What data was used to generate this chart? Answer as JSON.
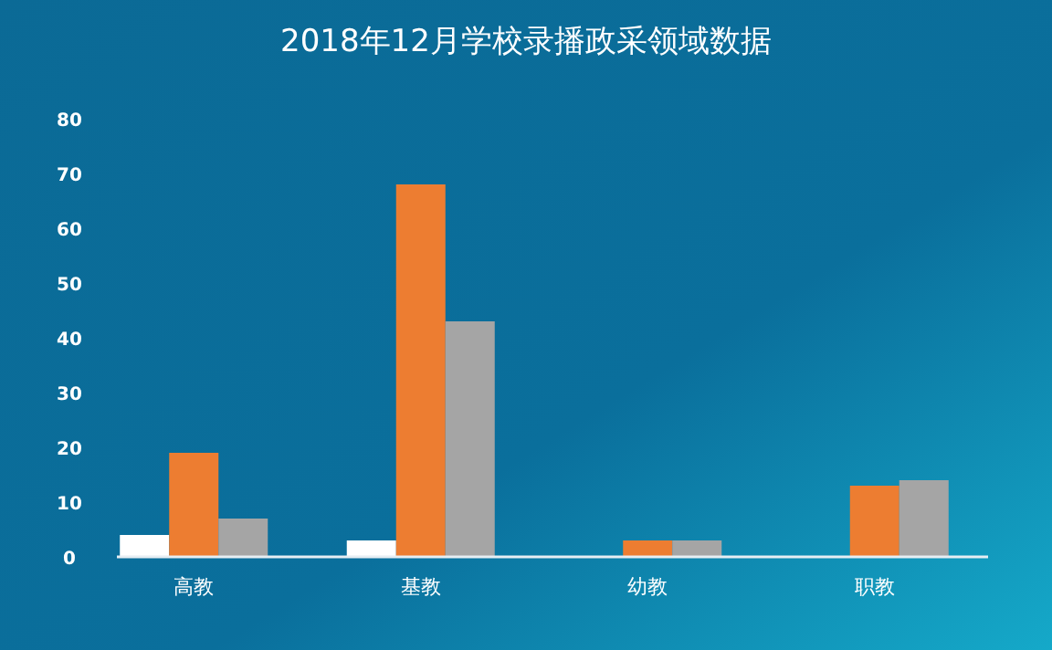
{
  "chart_data": {
    "type": "bar",
    "title": "2018年12月学校录播政采领域数据",
    "categories": [
      "高教",
      "基教",
      "幼教",
      "职教"
    ],
    "series": [
      {
        "color": "#ffffff",
        "values": [
          4,
          3,
          0,
          0
        ]
      },
      {
        "color": "#ed7d31",
        "values": [
          19,
          68,
          3,
          13
        ]
      },
      {
        "color": "#a5a5a5",
        "values": [
          7,
          43,
          3,
          14
        ]
      }
    ],
    "ylim": [
      0,
      80
    ],
    "yticks": [
      0,
      10,
      20,
      30,
      40,
      50,
      60,
      70,
      80
    ],
    "grid": false
  }
}
